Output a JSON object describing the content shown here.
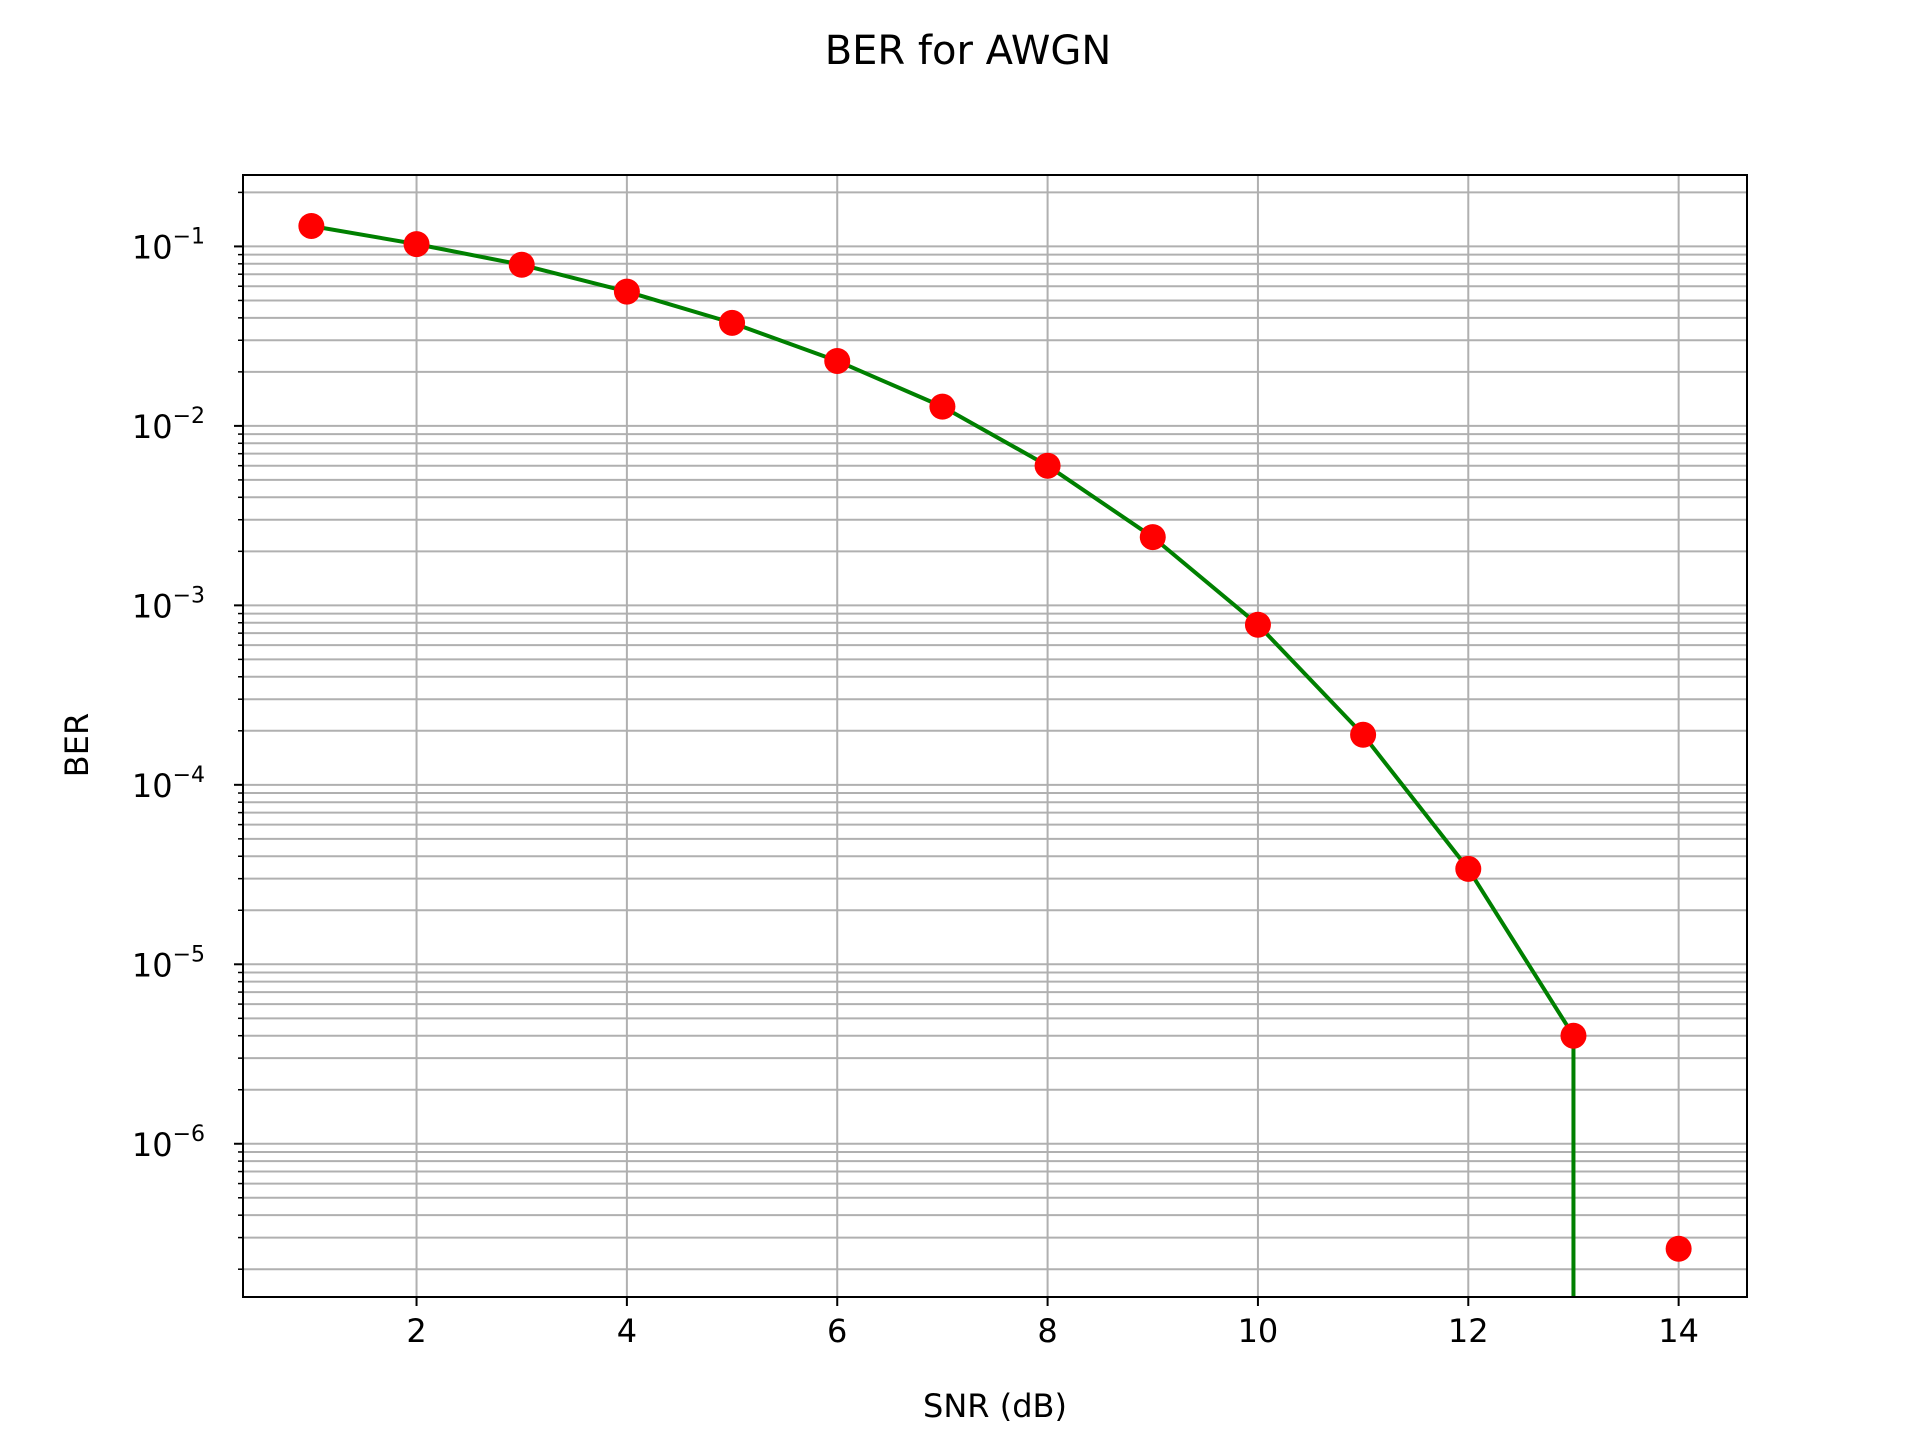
{
  "chart_data": {
    "type": "line",
    "title": "BER for AWGN",
    "xlabel": "SNR (dB)",
    "ylabel": "BER",
    "x_scale": "linear",
    "y_scale": "log",
    "xlim": [
      0.35,
      14.65
    ],
    "ylim": [
      1.4e-07,
      0.25
    ],
    "x_ticks": [
      2,
      4,
      6,
      8,
      10,
      12,
      14
    ],
    "x_tick_labels": [
      "2",
      "4",
      "6",
      "8",
      "10",
      "12",
      "14"
    ],
    "y_ticks": [
      1e-06,
      1e-05,
      0.0001,
      0.001,
      0.01,
      0.1
    ],
    "y_tick_labels": [
      {
        "base": "10",
        "exp": "−6"
      },
      {
        "base": "10",
        "exp": "−5"
      },
      {
        "base": "10",
        "exp": "−4"
      },
      {
        "base": "10",
        "exp": "−3"
      },
      {
        "base": "10",
        "exp": "−2"
      },
      {
        "base": "10",
        "exp": "−1"
      }
    ],
    "grid": true,
    "grid_minor": true,
    "legend": "none",
    "x": [
      1,
      2,
      3,
      4,
      5,
      6,
      7,
      8,
      9,
      10,
      11,
      12,
      13,
      14
    ],
    "series": [
      {
        "name": "",
        "style": "line",
        "color": "#008000",
        "values": [
          0.13,
          0.103,
          0.079,
          0.056,
          0.0375,
          0.023,
          0.0128,
          0.006,
          0.0024,
          0.00078,
          0.00019,
          3.4e-05,
          4e-06,
          0
        ],
        "drop_to_axis_after_last_positive": true
      },
      {
        "name": "",
        "style": "markers",
        "color": "#ff0000",
        "values": [
          0.13,
          0.103,
          0.079,
          0.056,
          0.0375,
          0.023,
          0.0128,
          0.006,
          0.0024,
          0.00078,
          0.00019,
          3.4e-05,
          4e-06,
          2.6e-07
        ]
      }
    ],
    "colors": {
      "line": "#008000",
      "marker": "#ff0000",
      "grid": "#b0b0b0",
      "axes": "#000000",
      "background": "#ffffff"
    }
  }
}
